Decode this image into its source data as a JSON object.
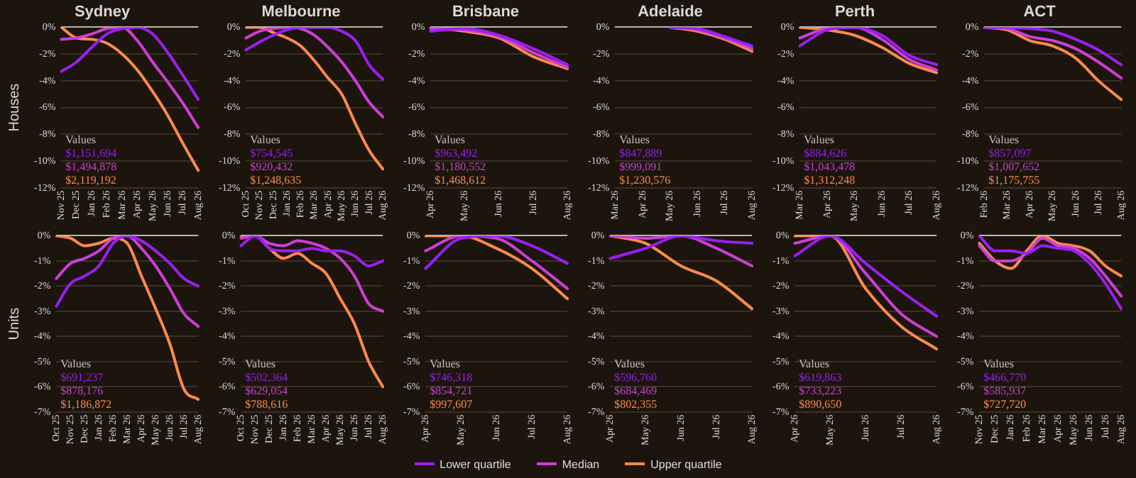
{
  "chart_data": [
    {
      "type": "line",
      "title": "Sydney",
      "ylabel": "Houses",
      "categories": [
        "Nov 25",
        "Dec 25",
        "Jan 26",
        "Feb 26",
        "Mar 26",
        "Apr 26",
        "May 26",
        "Jun 26",
        "Jul 26",
        "Aug 26"
      ],
      "series": [
        {
          "name": "Lower quartile",
          "color": "#9b1ff0",
          "values": [
            -3.3,
            -2.6,
            -1.5,
            -0.5,
            -0.1,
            0,
            -0.5,
            -1.9,
            -3.6,
            -5.4
          ]
        },
        {
          "name": "Median",
          "color": "#cc3fd6",
          "values": [
            -0.9,
            -0.8,
            -0.5,
            -0.1,
            0,
            -1.0,
            -2.6,
            -4.1,
            -5.7,
            -7.5
          ]
        },
        {
          "name": "Upper quartile",
          "color": "#ff8a4c",
          "values": [
            0,
            -0.8,
            -0.9,
            -1.2,
            -2.0,
            -3.2,
            -4.8,
            -6.6,
            -8.7,
            -10.7
          ]
        }
      ],
      "ylim": [
        -12,
        0
      ],
      "yticks": [
        {
          "value": 0,
          "label": "0%"
        },
        {
          "value": -2,
          "label": "-2%"
        },
        {
          "value": -4,
          "label": "-4%"
        },
        {
          "value": -6,
          "label": "-6%"
        },
        {
          "value": -8,
          "label": "-8%"
        },
        {
          "value": -10,
          "label": "-10%"
        },
        {
          "value": -12,
          "label": "-12%"
        }
      ],
      "grid": "y",
      "legend": "bottom",
      "annotations": [
        "Values",
        "$1,151,694",
        "$1,494,878",
        "$2,119,192"
      ]
    },
    {
      "type": "line",
      "title": "Melbourne",
      "categories": [
        "Oct 25",
        "Nov 25",
        "Dec 25",
        "Jan 26",
        "Feb 26",
        "Mar 26",
        "Apr 26",
        "May 26",
        "Jun 26",
        "Jul 26",
        "Aug 26"
      ],
      "series": [
        {
          "color": "#9b1ff0",
          "values": [
            -1.7,
            -1.1,
            -0.6,
            -0.2,
            0,
            0,
            0,
            -0.3,
            -1.0,
            -2.8,
            -3.9
          ]
        },
        {
          "color": "#cc3fd6",
          "values": [
            -0.8,
            -0.3,
            -0.1,
            0,
            -0.1,
            -0.6,
            -1.5,
            -2.6,
            -4.0,
            -5.6,
            -6.7
          ]
        },
        {
          "color": "#ff8a4c",
          "values": [
            0,
            0,
            -0.4,
            -0.8,
            -1.4,
            -2.5,
            -3.8,
            -5.0,
            -7.2,
            -9.2,
            -10.6
          ]
        }
      ],
      "ylim": [
        -12,
        0
      ],
      "yticks": [
        {
          "value": 0,
          "label": "0%"
        },
        {
          "value": -2,
          "label": "-2%"
        },
        {
          "value": -4,
          "label": "-4%"
        },
        {
          "value": -6,
          "label": "-6%"
        },
        {
          "value": -8,
          "label": "-8%"
        },
        {
          "value": -10,
          "label": "-10%"
        },
        {
          "value": -12,
          "label": "-12%"
        }
      ],
      "grid": "y",
      "annotations": [
        "Values",
        "$754,545",
        "$920,432",
        "$1,248,635"
      ]
    },
    {
      "type": "line",
      "title": "Brisbane",
      "categories": [
        "Apr 26",
        "May 26",
        "Jun 26",
        "Jul 26",
        "Aug 26"
      ],
      "series": [
        {
          "color": "#9b1ff0",
          "values": [
            -0.3,
            -0.1,
            -0.6,
            -1.6,
            -2.8
          ]
        },
        {
          "color": "#cc3fd6",
          "values": [
            -0.1,
            -0.2,
            -0.7,
            -1.9,
            -3.0
          ]
        },
        {
          "color": "#ff8a4c",
          "values": [
            0,
            -0.3,
            -0.8,
            -2.2,
            -3.1
          ]
        }
      ],
      "ylim": [
        -12,
        0
      ],
      "yticks": [
        {
          "value": 0,
          "label": "0%"
        },
        {
          "value": -2,
          "label": "-2%"
        },
        {
          "value": -4,
          "label": "-4%"
        },
        {
          "value": -6,
          "label": "-6%"
        },
        {
          "value": -8,
          "label": "-8%"
        },
        {
          "value": -10,
          "label": "-10%"
        },
        {
          "value": -12,
          "label": "-12%"
        }
      ],
      "grid": "y",
      "annotations": [
        "Values",
        "$963,492",
        "$1,180,552",
        "$1,468,612"
      ]
    },
    {
      "type": "line",
      "title": "Adelaide",
      "categories": [
        "Mar 26",
        "Apr 26",
        "May 26",
        "Jun 26",
        "Jul 26",
        "Aug 26"
      ],
      "series": [
        {
          "color": "#9b1ff0",
          "values": [
            null,
            null,
            0,
            -0.1,
            -0.7,
            -1.4
          ]
        },
        {
          "color": "#cc3fd6",
          "values": [
            null,
            null,
            0,
            -0.2,
            -0.8,
            -1.6
          ]
        },
        {
          "color": "#ff8a4c",
          "values": [
            null,
            null,
            0,
            -0.3,
            -0.9,
            -1.8
          ]
        }
      ],
      "ylim": [
        -12,
        0
      ],
      "yticks": [
        {
          "value": 0,
          "label": "0%"
        },
        {
          "value": -2,
          "label": "-2%"
        },
        {
          "value": -4,
          "label": "-4%"
        },
        {
          "value": -6,
          "label": "-6%"
        },
        {
          "value": -8,
          "label": "-8%"
        },
        {
          "value": -10,
          "label": "-10%"
        },
        {
          "value": -12,
          "label": "-12%"
        }
      ],
      "grid": "y",
      "annotations": [
        "Values",
        "$847,889",
        "$999,091",
        "$1,230,576"
      ]
    },
    {
      "type": "line",
      "title": "Perth",
      "categories": [
        "Mar 26",
        "Apr 26",
        "May 26",
        "Jun 26",
        "Jul 26",
        "Aug 26"
      ],
      "series": [
        {
          "color": "#9b1ff0",
          "values": [
            -1.4,
            -0.2,
            0,
            -0.6,
            -2.1,
            -2.8
          ]
        },
        {
          "color": "#cc3fd6",
          "values": [
            -0.8,
            -0.1,
            0,
            -0.9,
            -2.4,
            -3.2
          ]
        },
        {
          "color": "#ff8a4c",
          "values": [
            0,
            -0.2,
            -0.6,
            -1.5,
            -2.7,
            -3.4
          ]
        }
      ],
      "ylim": [
        -12,
        0
      ],
      "yticks": [
        {
          "value": 0,
          "label": "0%"
        },
        {
          "value": -2,
          "label": "-2%"
        },
        {
          "value": -4,
          "label": "-4%"
        },
        {
          "value": -6,
          "label": "-6%"
        },
        {
          "value": -8,
          "label": "-8%"
        },
        {
          "value": -10,
          "label": "-10%"
        },
        {
          "value": -12,
          "label": "-12%"
        }
      ],
      "grid": "y",
      "annotations": [
        "Values",
        "$884,626",
        "$1,043,478",
        "$1,312,248"
      ]
    },
    {
      "type": "line",
      "title": "ACT",
      "categories": [
        "Feb 26",
        "Mar 26",
        "Apr 26",
        "May 26",
        "Jun 26",
        "Jul 26",
        "Aug 26"
      ],
      "series": [
        {
          "color": "#9b1ff0",
          "values": [
            0,
            0,
            -0.1,
            -0.3,
            -0.9,
            -1.7,
            -2.8
          ]
        },
        {
          "color": "#cc3fd6",
          "values": [
            0,
            -0.1,
            -0.7,
            -1.0,
            -1.6,
            -2.6,
            -3.8
          ]
        },
        {
          "color": "#ff8a4c",
          "values": [
            0,
            -0.2,
            -1.0,
            -1.4,
            -2.3,
            -4.0,
            -5.4
          ]
        }
      ],
      "ylim": [
        -12,
        0
      ],
      "yticks": [
        {
          "value": 0,
          "label": "0%"
        },
        {
          "value": -2,
          "label": "-2%"
        },
        {
          "value": -4,
          "label": "-4%"
        },
        {
          "value": -6,
          "label": "-6%"
        },
        {
          "value": -8,
          "label": "-8%"
        },
        {
          "value": -10,
          "label": "-10%"
        },
        {
          "value": -12,
          "label": "-12%"
        }
      ],
      "grid": "y",
      "annotations": [
        "Values",
        "$857,097",
        "$1,007,652",
        "$1,175,755"
      ]
    },
    {
      "type": "line",
      "ylabel": "Units",
      "categories": [
        "Oct 25",
        "Nov 25",
        "Dec 25",
        "Jan 26",
        "Feb 26",
        "Mar 26",
        "Apr 26",
        "May 26",
        "Jun 26",
        "Jul 26",
        "Aug 26"
      ],
      "series": [
        {
          "color": "#9b1ff0",
          "values": [
            -2.8,
            -1.9,
            -1.6,
            -1.2,
            -0.3,
            0,
            -0.2,
            -0.6,
            -1.1,
            -1.7,
            -2.0
          ]
        },
        {
          "color": "#cc3fd6",
          "values": [
            -1.7,
            -1.1,
            -0.9,
            -0.6,
            -0.1,
            0,
            -0.5,
            -1.2,
            -2.1,
            -3.1,
            -3.6
          ]
        },
        {
          "color": "#ff8a4c",
          "values": [
            0,
            -0.1,
            -0.4,
            -0.3,
            -0.1,
            -0.3,
            -1.6,
            -2.9,
            -4.3,
            -6.1,
            -6.5
          ]
        }
      ],
      "ylim": [
        -7,
        0
      ],
      "yticks": [
        {
          "value": 0,
          "label": "0%"
        },
        {
          "value": -1,
          "label": "-1%"
        },
        {
          "value": -2,
          "label": "-2%"
        },
        {
          "value": -3,
          "label": "-3%"
        },
        {
          "value": -4,
          "label": "-4%"
        },
        {
          "value": -5,
          "label": "-5%"
        },
        {
          "value": -6,
          "label": "-6%"
        },
        {
          "value": -7,
          "label": "-7%"
        }
      ],
      "grid": "y",
      "annotations": [
        "Values",
        "$691,237",
        "$878,176",
        "$1,186,872"
      ]
    },
    {
      "type": "line",
      "categories": [
        "Oct 25",
        "Nov 25",
        "Dec 25",
        "Jan 26",
        "Feb 26",
        "Mar 26",
        "Apr 26",
        "May 26",
        "Jun 26",
        "Jul 26",
        "Aug 26"
      ],
      "series": [
        {
          "color": "#9b1ff0",
          "values": [
            -0.4,
            0,
            -0.5,
            -0.6,
            -0.6,
            -0.5,
            -0.6,
            -0.6,
            -0.8,
            -1.2,
            -1.0
          ]
        },
        {
          "color": "#cc3fd6",
          "values": [
            -0.1,
            0,
            -0.3,
            -0.4,
            -0.2,
            -0.3,
            -0.5,
            -0.9,
            -1.6,
            -2.7,
            -3.0
          ]
        },
        {
          "color": "#ff8a4c",
          "values": [
            0,
            0,
            -0.5,
            -0.9,
            -0.7,
            -1.1,
            -1.5,
            -2.5,
            -3.5,
            -5.0,
            -6.0
          ]
        }
      ],
      "ylim": [
        -7,
        0
      ],
      "yticks": [
        {
          "value": 0,
          "label": "0%"
        },
        {
          "value": -1,
          "label": "-1%"
        },
        {
          "value": -2,
          "label": "-2%"
        },
        {
          "value": -3,
          "label": "-3%"
        },
        {
          "value": -4,
          "label": "-4%"
        },
        {
          "value": -5,
          "label": "-5%"
        },
        {
          "value": -6,
          "label": "-6%"
        },
        {
          "value": -7,
          "label": "-7%"
        }
      ],
      "grid": "y",
      "annotations": [
        "Values",
        "$502,364",
        "$629,054",
        "$788,616"
      ]
    },
    {
      "type": "line",
      "categories": [
        "Apr 26",
        "May 26",
        "Jun 26",
        "Jul 26",
        "Aug 26"
      ],
      "series": [
        {
          "color": "#9b1ff0",
          "values": [
            -1.3,
            -0.1,
            0,
            -0.4,
            -1.1
          ]
        },
        {
          "color": "#cc3fd6",
          "values": [
            -0.6,
            0,
            -0.1,
            -1.0,
            -2.1
          ]
        },
        {
          "color": "#ff8a4c",
          "values": [
            0,
            0,
            -0.5,
            -1.3,
            -2.5
          ]
        }
      ],
      "ylim": [
        -7,
        0
      ],
      "yticks": [
        {
          "value": 0,
          "label": "0%"
        },
        {
          "value": -1,
          "label": "-1%"
        },
        {
          "value": -2,
          "label": "-2%"
        },
        {
          "value": -3,
          "label": "-3%"
        },
        {
          "value": -4,
          "label": "-4%"
        },
        {
          "value": -5,
          "label": "-5%"
        },
        {
          "value": -6,
          "label": "-6%"
        },
        {
          "value": -7,
          "label": "-7%"
        }
      ],
      "grid": "y",
      "annotations": [
        "Values",
        "$746,318",
        "$854,721",
        "$997,607"
      ]
    },
    {
      "type": "line",
      "categories": [
        "Apr 26",
        "May 26",
        "Jun 26",
        "Jul 26",
        "Aug 26"
      ],
      "series": [
        {
          "color": "#9b1ff0",
          "values": [
            -0.9,
            -0.5,
            0,
            -0.2,
            -0.3
          ]
        },
        {
          "color": "#cc3fd6",
          "values": [
            0,
            -0.1,
            0,
            -0.5,
            -1.2
          ]
        },
        {
          "color": "#ff8a4c",
          "values": [
            0,
            -0.3,
            -1.2,
            -1.8,
            -2.9
          ]
        }
      ],
      "ylim": [
        -7,
        0
      ],
      "yticks": [
        {
          "value": 0,
          "label": "0%"
        },
        {
          "value": -1,
          "label": "-1%"
        },
        {
          "value": -2,
          "label": "-2%"
        },
        {
          "value": -3,
          "label": "-3%"
        },
        {
          "value": -4,
          "label": "-4%"
        },
        {
          "value": -5,
          "label": "-5%"
        },
        {
          "value": -6,
          "label": "-6%"
        },
        {
          "value": -7,
          "label": "-7%"
        }
      ],
      "grid": "y",
      "annotations": [
        "Values",
        "$596,760",
        "$684,469",
        "$802,355"
      ]
    },
    {
      "type": "line",
      "categories": [
        "Apr 26",
        "May 26",
        "Jun 26",
        "Jul 26",
        "Aug 26"
      ],
      "series": [
        {
          "color": "#9b1ff0",
          "values": [
            -0.8,
            0,
            -1.1,
            -2.2,
            -3.2
          ]
        },
        {
          "color": "#cc3fd6",
          "values": [
            -0.3,
            0,
            -1.5,
            -3.1,
            -4.0
          ]
        },
        {
          "color": "#ff8a4c",
          "values": [
            0,
            0,
            -2.1,
            -3.6,
            -4.5
          ]
        }
      ],
      "ylim": [
        -7,
        0
      ],
      "yticks": [
        {
          "value": 0,
          "label": "0%"
        },
        {
          "value": -1,
          "label": "-1%"
        },
        {
          "value": -2,
          "label": "-2%"
        },
        {
          "value": -3,
          "label": "-3%"
        },
        {
          "value": -4,
          "label": "-4%"
        },
        {
          "value": -5,
          "label": "-5%"
        },
        {
          "value": -6,
          "label": "-6%"
        },
        {
          "value": -7,
          "label": "-7%"
        }
      ],
      "grid": "y",
      "annotations": [
        "Values",
        "$619,863",
        "$733,223",
        "$890,650"
      ]
    },
    {
      "type": "line",
      "categories": [
        "Nov 25",
        "Dec 25",
        "Jan 26",
        "Feb 26",
        "Mar 26",
        "Apr 26",
        "May 26",
        "Jun 26",
        "Jul 26",
        "Aug 26"
      ],
      "series": [
        {
          "color": "#9b1ff0",
          "values": [
            0,
            -0.6,
            -0.6,
            -0.7,
            -0.4,
            -0.5,
            -0.6,
            -1.1,
            -1.9,
            -2.9
          ]
        },
        {
          "color": "#cc3fd6",
          "values": [
            -0.4,
            -1.0,
            -1.0,
            -0.7,
            -0.1,
            -0.4,
            -0.5,
            -0.9,
            -1.6,
            -2.4
          ]
        },
        {
          "color": "#ff8a4c",
          "values": [
            -0.3,
            -1.0,
            -1.3,
            -0.6,
            0,
            -0.3,
            -0.4,
            -0.6,
            -1.2,
            -1.6
          ]
        }
      ],
      "ylim": [
        -7,
        0
      ],
      "yticks": [
        {
          "value": 0,
          "label": "0%"
        },
        {
          "value": -1,
          "label": "-1%"
        },
        {
          "value": -2,
          "label": "-2%"
        },
        {
          "value": -3,
          "label": "-3%"
        },
        {
          "value": -4,
          "label": "-4%"
        },
        {
          "value": -5,
          "label": "-5%"
        },
        {
          "value": -6,
          "label": "-6%"
        },
        {
          "value": -7,
          "label": "-7%"
        }
      ],
      "grid": "y",
      "annotations": [
        "Values",
        "$466,770",
        "$585,937",
        "$727,720"
      ]
    }
  ]
}
